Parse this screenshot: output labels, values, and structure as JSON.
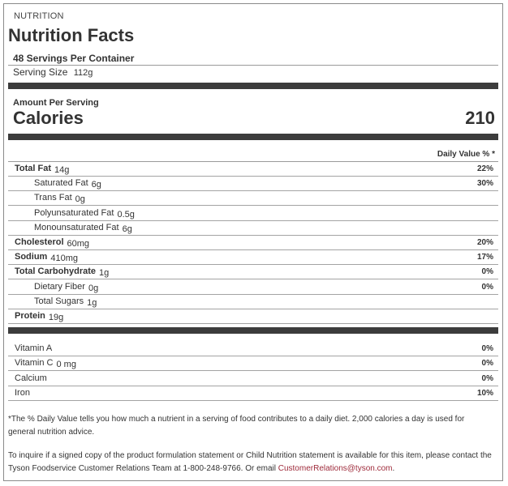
{
  "section_label": "NUTRITION",
  "title": "Nutrition Facts",
  "servings_per_container": "48  Servings Per Container",
  "serving_size": {
    "label": "Serving Size",
    "value": "112g"
  },
  "amount_per_serving": "Amount Per Serving",
  "calories": {
    "label": "Calories",
    "value": "210"
  },
  "daily_value_header": "Daily Value % *",
  "nutrients": [
    {
      "name": "Total Fat",
      "amount": "14g",
      "dv": "22%",
      "bold": true,
      "indent": false
    },
    {
      "name": "Saturated Fat",
      "amount": "6g",
      "dv": "30%",
      "bold": false,
      "indent": true
    },
    {
      "name": "Trans Fat",
      "amount": "0g",
      "dv": "",
      "bold": false,
      "indent": true
    },
    {
      "name": "Polyunsaturated Fat",
      "amount": "0.5g",
      "dv": "",
      "bold": false,
      "indent": true
    },
    {
      "name": "Monounsaturated Fat",
      "amount": "6g",
      "dv": "",
      "bold": false,
      "indent": true
    },
    {
      "name": "Cholesterol",
      "amount": "60mg",
      "dv": "20%",
      "bold": true,
      "indent": false
    },
    {
      "name": "Sodium",
      "amount": "410mg",
      "dv": "17%",
      "bold": true,
      "indent": false
    },
    {
      "name": "Total Carbohydrate",
      "amount": "1g",
      "dv": "0%",
      "bold": true,
      "indent": false
    },
    {
      "name": "Dietary Fiber",
      "amount": "0g",
      "dv": "0%",
      "bold": false,
      "indent": true
    },
    {
      "name": "Total Sugars",
      "amount": "1g",
      "dv": "",
      "bold": false,
      "indent": true
    },
    {
      "name": "Protein",
      "amount": "19g",
      "dv": "",
      "bold": true,
      "indent": false
    }
  ],
  "vitamins": [
    {
      "name": "Vitamin A",
      "amount": "",
      "dv": "0%"
    },
    {
      "name": "Vitamin C",
      "amount": "0 mg",
      "dv": "0%"
    },
    {
      "name": "Calcium",
      "amount": "",
      "dv": "0%"
    },
    {
      "name": "Iron",
      "amount": "",
      "dv": "10%"
    }
  ],
  "footnote": "*The % Daily Value tells you how much a nutrient in a serving of food contributes to a daily diet. 2,000 calories a day is used for general nutrition advice.",
  "inquiry": {
    "text": "To inquire if a signed copy of the product formulation statement or Child Nutrition statement is available for this item, please contact the Tyson Foodservice Customer Relations Team at 1-800-248-9766. Or email ",
    "email": "CustomerRelations@tyson.com",
    "suffix": "."
  },
  "colors": {
    "rule": "#3c3c3c",
    "link": "#9e2a3a",
    "border": "#8a8a8a"
  }
}
